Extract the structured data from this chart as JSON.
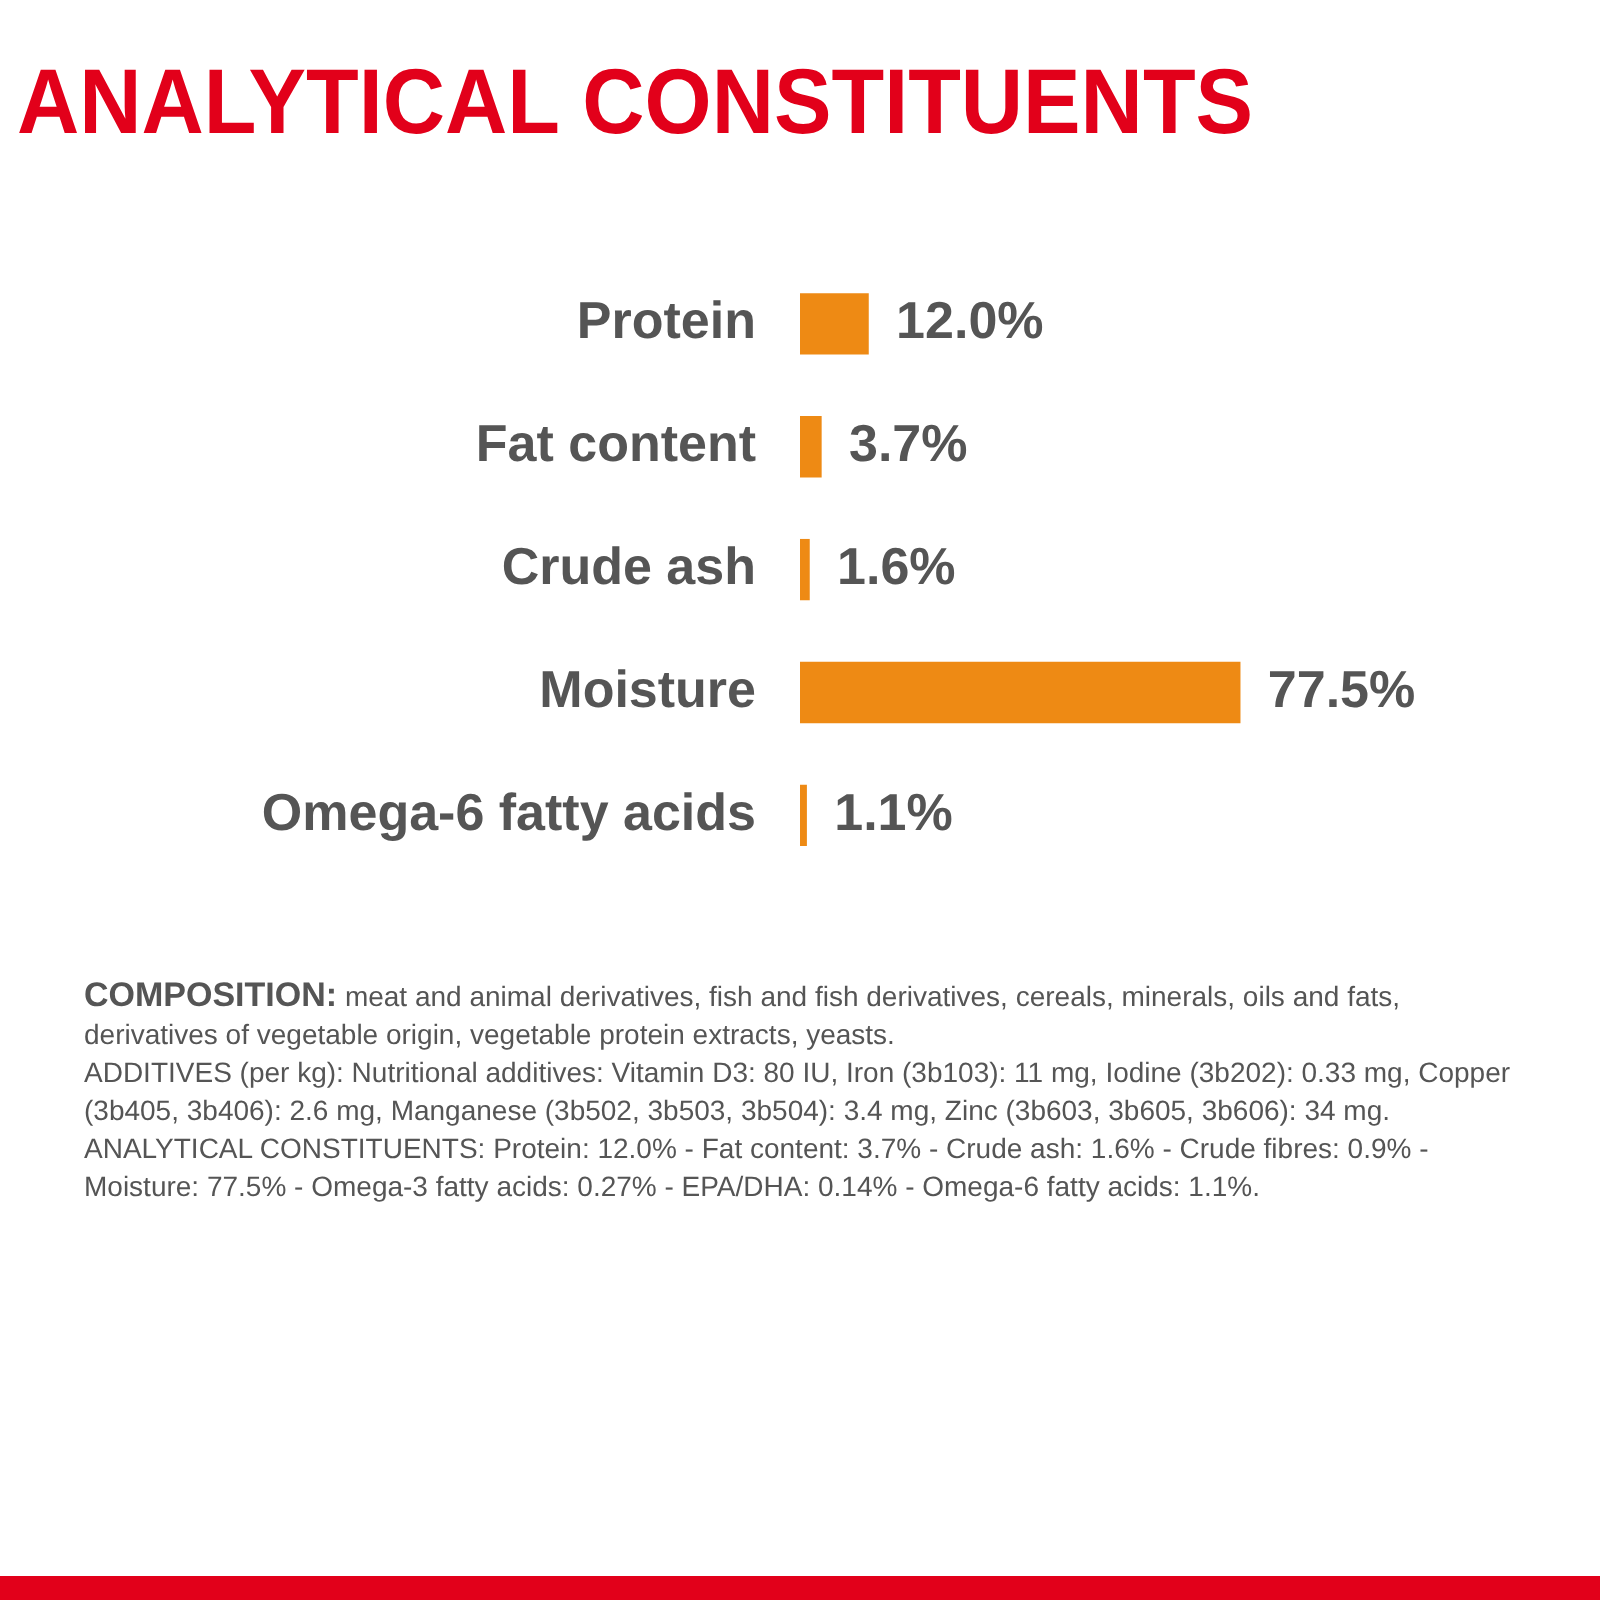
{
  "chart_data": {
    "type": "bar",
    "orientation": "horizontal",
    "title": "ANALYTICAL CONSTITUENTS",
    "categories": [
      "Protein",
      "Fat content",
      "Crude ash",
      "Moisture",
      "Omega-6 fatty acids"
    ],
    "values": [
      12.0,
      3.7,
      1.6,
      77.5,
      1.1
    ],
    "value_labels": [
      "12.0%",
      "3.7%",
      "1.6%",
      "77.5%",
      "1.1%"
    ],
    "color": "#ee8a14",
    "legend": false,
    "annotations": [
      "COMPOSITION: meat and animal derivatives, fish and fish derivatives, cereals, minerals, oils and fats, derivatives of vegetable origin, vegetable protein extracts, yeasts.",
      "ADDITIVES (per kg): Nutritional additives: Vitamin D3: 80 IU, Iron (3b103): 11 mg, Iodine (3b202): 0.33 mg, Copper (3b405, 3b406): 2.6 mg, Manganese (3b502, 3b503, 3b504): 3.4 mg, Zinc (3b603, 3b605, 3b606): 34 mg.",
      "ANALYTICAL CONSTITUENTS: Protein: 12.0% - Fat content: 3.7% - Crude ash: 1.6% - Crude fibres: 0.9% - Moisture: 77.5% - Omega-3 fatty acids: 0.27% - EPA/DHA: 0.14% - Omega-6 fatty acids: 1.1%."
    ]
  }
}
